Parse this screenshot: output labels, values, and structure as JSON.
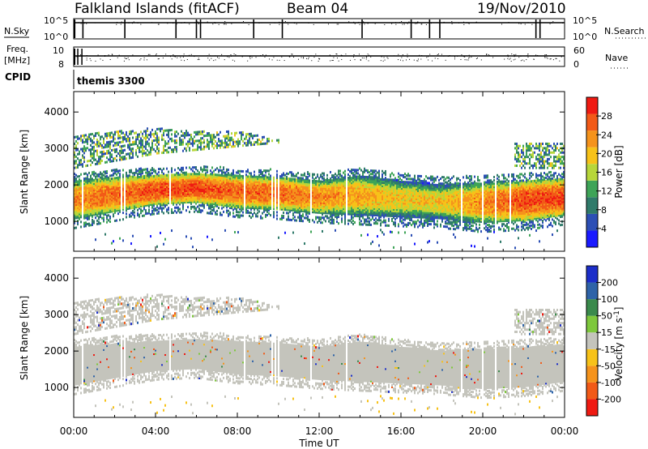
{
  "header": {
    "station": "Falkland Islands (fitACF)",
    "beam": "Beam 04",
    "date": "19/Nov/2010"
  },
  "left_labels": {
    "nsky": "N.Sky",
    "freq_line1": "Freq.",
    "freq_line2": "[MHz]",
    "cpid": "CPID"
  },
  "right_labels": {
    "nsearch": "N.Search",
    "nave": "Nave"
  },
  "cpid_value": "themis 3300",
  "colors": {
    "power_scale": [
      "#1a1aff",
      "#2c4fb5",
      "#2f7a6a",
      "#3ea457",
      "#b7d63a",
      "#f7c219",
      "#f5931c",
      "#f25a17",
      "#ef1a12"
    ],
    "velocity_scale": [
      "#ef1a12",
      "#f25a17",
      "#f5931c",
      "#f7c219",
      "#c4c4bc",
      "#7ec83c",
      "#3a8a4c",
      "#2e63a8",
      "#1c2ec9"
    ],
    "ground_scatter": "#c4c4bc"
  },
  "chart_data": [
    {
      "type": "line",
      "panel": "noise",
      "left_axis_label": "N.Sky",
      "right_axis_label": "N.Search",
      "left_ticks": [
        "10^5",
        "10^0"
      ],
      "right_ticks": [
        "10^5",
        "10^0"
      ],
      "dropout_hours": [
        0.05,
        0.45,
        2.5,
        5.0,
        6.0,
        6.2,
        8.8,
        10.2,
        14.1,
        16.5,
        17.4,
        17.9,
        22.6,
        22.8
      ]
    },
    {
      "type": "scatter",
      "panel": "frequency",
      "left_axis_label": "Freq. [MHz]",
      "right_axis_label": "Nave",
      "left_ticks": [
        "10",
        "8"
      ],
      "right_ticks": [
        "60",
        "0"
      ],
      "freq_mhz": 10.0,
      "nave": 30
    },
    {
      "type": "heatmap",
      "panel": "power",
      "xlabel": "",
      "ylabel": "Slant Range [km]",
      "colorbar_label": "Power [dB]",
      "colorbar_ticks": [
        4,
        8,
        12,
        16,
        20,
        24,
        28
      ],
      "ylim": [
        180,
        4560
      ],
      "yticks": [
        1000,
        2000,
        3000,
        4000
      ],
      "xlim": [
        0,
        24
      ],
      "main_band": {
        "hours": [
          0,
          2,
          4,
          6,
          8,
          10,
          12,
          14,
          16,
          18,
          20,
          22,
          24
        ],
        "low_km": [
          1100,
          1300,
          1500,
          1550,
          1400,
          1350,
          1250,
          1200,
          1150,
          1100,
          1000,
          1050,
          1200
        ],
        "high_km": [
          2150,
          2250,
          2300,
          2350,
          2300,
          2250,
          2150,
          2300,
          2150,
          2050,
          2100,
          2150,
          2200
        ],
        "peak_db": [
          24,
          26,
          28,
          28,
          26,
          26,
          24,
          22,
          20,
          20,
          24,
          28,
          28
        ]
      },
      "upper_band": {
        "hours": [
          0,
          2,
          4,
          6,
          8,
          10
        ],
        "low_km": [
          2500,
          2700,
          2900,
          3000,
          3100,
          3200
        ],
        "high_km": [
          3400,
          3500,
          3600,
          3500,
          3500,
          3300
        ]
      }
    },
    {
      "type": "heatmap",
      "panel": "velocity",
      "xlabel": "Time UT",
      "ylabel": "Slant Range [km]",
      "colorbar_label": "Velocity [m s^-1]",
      "colorbar_ticks": [
        -200,
        -100,
        -50,
        -15,
        15,
        50,
        100,
        200
      ],
      "ylim": [
        180,
        4560
      ],
      "yticks": [
        1000,
        2000,
        3000,
        4000
      ],
      "xlim": [
        0,
        24
      ],
      "xticks": [
        "00:00",
        "04:00",
        "08:00",
        "12:00",
        "16:00",
        "20:00",
        "00:00"
      ]
    }
  ],
  "xaxis": {
    "label": "Time UT",
    "ticks": [
      "00:00",
      "04:00",
      "08:00",
      "12:00",
      "16:00",
      "20:00",
      "00:00"
    ]
  },
  "colorbars": {
    "power_label": "Power [dB]",
    "power_ticks": [
      "28",
      "24",
      "20",
      "16",
      "12",
      "8",
      "4"
    ],
    "velocity_label": "Velocity [m s",
    "velocity_unit_sup": "-1",
    "velocity_label_end": "]",
    "velocity_ticks": [
      "200",
      "100",
      "50",
      "15",
      "-15",
      "-50",
      "-100",
      "-200"
    ]
  },
  "range_axis": {
    "label": "Slant Range [km]",
    "ticks": [
      "4000",
      "3000",
      "2000",
      "1000"
    ]
  }
}
